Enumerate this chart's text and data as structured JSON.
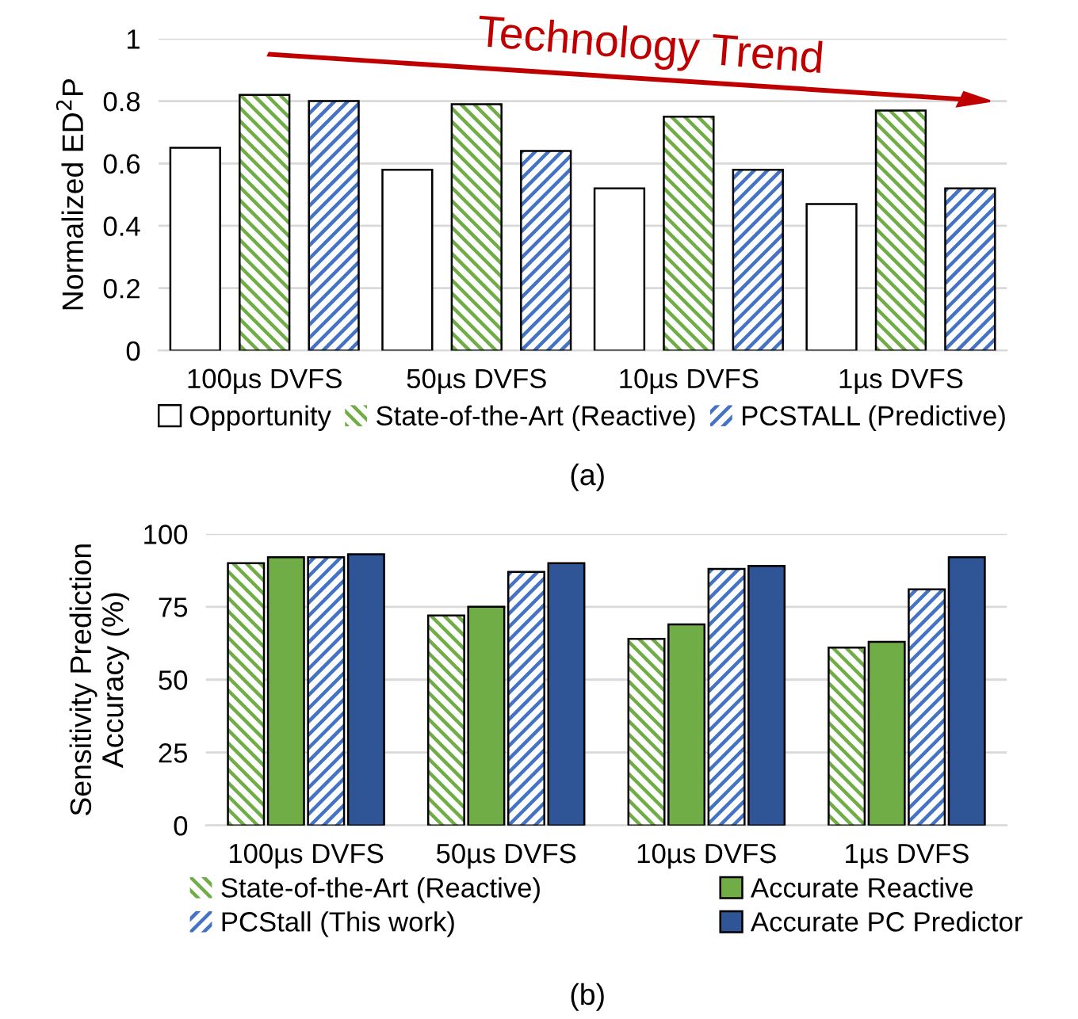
{
  "chart_data": [
    {
      "type": "bar",
      "ylabel": "Normalized ED$^{2}$P",
      "categories": [
        "100µs DVFS",
        "50µs DVFS",
        "10µs DVFS",
        "1µs DVFS"
      ],
      "series": [
        {
          "name": "Opportunity",
          "color": "#ffffff",
          "values": [
            0.65,
            0.58,
            0.52,
            0.47
          ]
        },
        {
          "name": "State-of-the-Art (Reactive)",
          "color": "#70ad47",
          "values": [
            0.82,
            0.79,
            0.75,
            0.77
          ]
        },
        {
          "name": "PCSTALL (Predictive)",
          "color": "#4472c4",
          "values": [
            0.8,
            0.64,
            0.58,
            0.52
          ]
        }
      ],
      "ylim": [
        0,
        1
      ],
      "yticks": [
        {
          "value": 0,
          "label": "0"
        },
        {
          "value": 0.2,
          "label": "0.2"
        },
        {
          "value": 0.4,
          "label": "0.4"
        },
        {
          "value": 0.6,
          "label": "0.6"
        },
        {
          "value": 0.8,
          "label": "0.8"
        },
        {
          "value": 1,
          "label": "1"
        }
      ],
      "grid": "y",
      "legend": "bottom",
      "annotations": [
        "Technology Trend",
        "(a)"
      ]
    },
    {
      "type": "bar",
      "ylabel": "Sensitivity Prediction\nAccuracy (%)",
      "categories": [
        "100µs DVFS",
        "50µs DVFS",
        "10µs DVFS",
        "1µs DVFS"
      ],
      "series": [
        {
          "name": "State-of-the-Art (Reactive)",
          "color": "#70ad47",
          "values": [
            90,
            72,
            64,
            61
          ]
        },
        {
          "name": "Accurate Reactive",
          "color": "#70ad47",
          "values": [
            92,
            75,
            69,
            63
          ]
        },
        {
          "name": "PCStall (This work)",
          "color": "#4472c4",
          "values": [
            92,
            87,
            88,
            81
          ]
        },
        {
          "name": "Accurate PC Predictor",
          "color": "#2f5597",
          "values": [
            93,
            90,
            89,
            92
          ]
        }
      ],
      "ylim": [
        0,
        100
      ],
      "yticks": [
        0,
        25,
        50,
        75,
        100
      ],
      "grid": "y",
      "legend": "bottom",
      "annotations": [
        "(b)"
      ]
    }
  ]
}
